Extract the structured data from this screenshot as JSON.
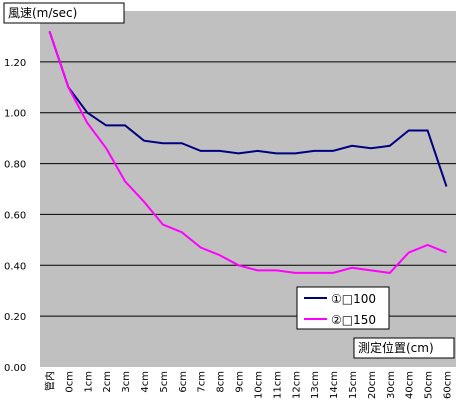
{
  "chart_data": {
    "type": "line",
    "ylabel": "風速(m/sec)",
    "xlabel": "測定位置(cm)",
    "ylim": [
      0,
      1.4
    ],
    "ytick_step": 0.2,
    "yticks": [
      "0.00",
      "0.20",
      "0.40",
      "0.60",
      "0.80",
      "1.00",
      "1.20"
    ],
    "grid": true,
    "legend_position": "lower-right",
    "categories": [
      "管内",
      "0cm",
      "1cm",
      "2cm",
      "3cm",
      "4cm",
      "5cm",
      "6cm",
      "7cm",
      "8cm",
      "9cm",
      "10cm",
      "11cm",
      "12cm",
      "13cm",
      "14cm",
      "15cm",
      "20cm",
      "30cm",
      "40cm",
      "50cm",
      "60cm"
    ],
    "series": [
      {
        "name": "①□100",
        "color": "#000080",
        "values": [
          1.32,
          1.1,
          1.0,
          0.95,
          0.95,
          0.89,
          0.88,
          0.88,
          0.85,
          0.85,
          0.84,
          0.85,
          0.84,
          0.84,
          0.85,
          0.85,
          0.87,
          0.86,
          0.87,
          0.93,
          0.93,
          0.71
        ]
      },
      {
        "name": "②□150",
        "color": "#ff00ff",
        "values": [
          1.32,
          1.1,
          0.96,
          0.86,
          0.73,
          0.65,
          0.56,
          0.53,
          0.47,
          0.44,
          0.4,
          0.38,
          0.38,
          0.37,
          0.37,
          0.37,
          0.39,
          0.38,
          0.37,
          0.45,
          0.48,
          0.45
        ]
      }
    ]
  },
  "colors": {
    "plot_background": "#c0c0c0",
    "gridline": "#000000",
    "label_box_background": "#ffffff"
  }
}
